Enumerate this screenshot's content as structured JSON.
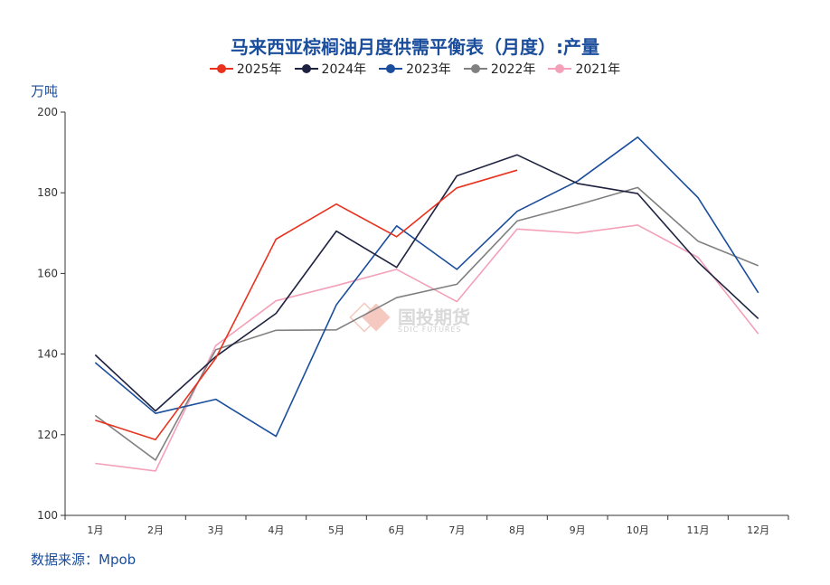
{
  "chart_data": {
    "type": "line",
    "title": "马来西亚棕榈油月度供需平衡表（月度）:产量",
    "ylabel": "万吨",
    "source": "数据来源：Mpob",
    "categories": [
      "1月",
      "2月",
      "3月",
      "4月",
      "5月",
      "6月",
      "7月",
      "8月",
      "9月",
      "10月",
      "11月",
      "12月"
    ],
    "ylim": [
      100,
      200
    ],
    "yticks": [
      100,
      120,
      140,
      160,
      180,
      200
    ],
    "legend_position": "top",
    "series": [
      {
        "name": "2025年",
        "color": "#e8321e",
        "values": [
          123.6,
          118.8,
          139,
          168.5,
          177.2,
          169.1,
          181.2,
          185.6,
          null,
          null,
          null,
          null
        ]
      },
      {
        "name": "2024年",
        "color": "#1e2240",
        "values": [
          139.8,
          125.9,
          139.4,
          150.1,
          170.5,
          161.5,
          184.2,
          189.4,
          182.3,
          179.8,
          162.8,
          148.8
        ]
      },
      {
        "name": "2023年",
        "color": "#1a4d9c",
        "values": [
          137.9,
          125.3,
          128.8,
          119.6,
          152.2,
          171.8,
          161.0,
          175.4,
          182.9,
          193.8,
          178.8,
          155.2
        ]
      },
      {
        "name": "2022年",
        "color": "#808080",
        "values": [
          124.8,
          113.7,
          141.1,
          145.9,
          146.0,
          154.0,
          157.3,
          173.0,
          177.0,
          181.3,
          168.0,
          161.9
        ]
      },
      {
        "name": "2021年",
        "color": "#f4a0b9",
        "values": [
          112.9,
          111.0,
          142.1,
          153.2,
          157.0,
          161.0,
          153.0,
          171.0,
          170.0,
          172.0,
          164.0,
          145.0
        ]
      }
    ]
  },
  "watermark": {
    "text": "国投期货",
    "sub": "SDIC FUTURES"
  }
}
